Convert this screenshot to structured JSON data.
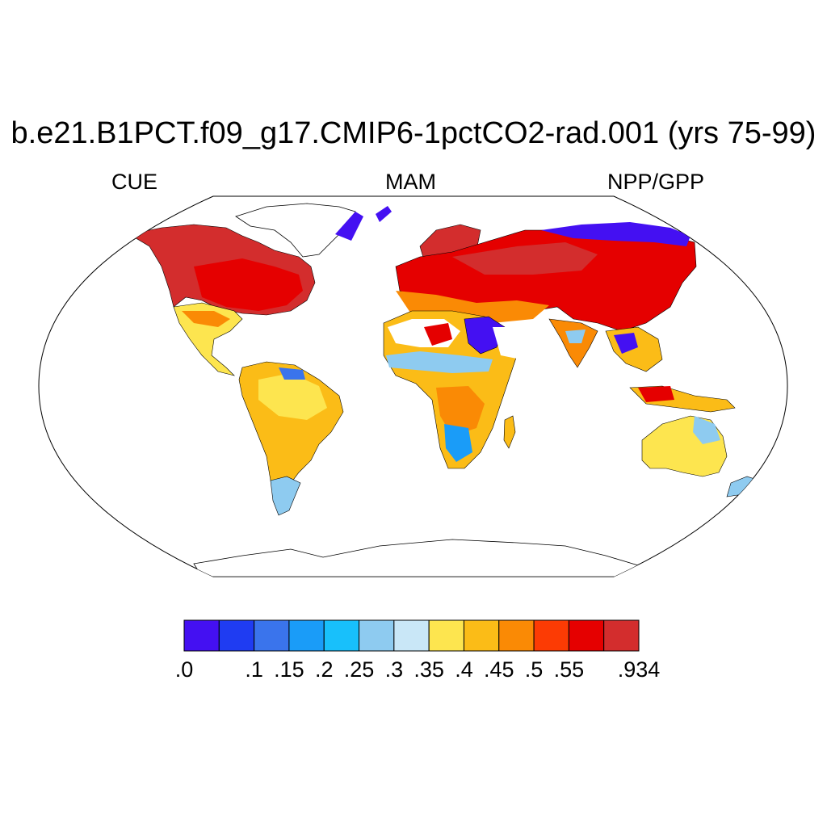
{
  "title": "b.e21.B1PCT.f09_g17.CMIP6-1pctCO2-rad.001 (yrs 75-99)",
  "subtitle_left": "CUE",
  "subtitle_center": "MAM",
  "subtitle_right": "NPP/GPP",
  "projection": "Robinson",
  "colorbar": {
    "colors": [
      "#4410f2",
      "#1f3cf2",
      "#3a74ec",
      "#1a9cf8",
      "#18c0fb",
      "#8ecbf0",
      "#c9e7f7",
      "#fde54f",
      "#fbbc17",
      "#fa8a05",
      "#fc3b04",
      "#e50000",
      "#d32d2d"
    ],
    "labels": [
      ".0",
      ".1",
      ".15",
      ".2",
      ".25",
      ".3",
      ".35",
      ".4",
      ".45",
      ".5",
      ".55",
      ".934"
    ],
    "label_boundaries": [
      0,
      2,
      3,
      4,
      5,
      6,
      7,
      8,
      9,
      10,
      11,
      13
    ]
  },
  "regions": [
    {
      "name": "north-america-north",
      "color": "#d32d2d"
    },
    {
      "name": "north-america-east",
      "color": "#e50000"
    },
    {
      "name": "greenland-coast",
      "color": "#4410f2"
    },
    {
      "name": "central-america",
      "color": "#fde54f"
    },
    {
      "name": "south-america",
      "color": "#fbbc17"
    },
    {
      "name": "patagonia",
      "color": "#8ecbf0"
    },
    {
      "name": "scandinavia",
      "color": "#d32d2d"
    },
    {
      "name": "eurasia",
      "color": "#e50000"
    },
    {
      "name": "siberia-arctic",
      "color": "#4410f2"
    },
    {
      "name": "africa",
      "color": "#fbbc17"
    },
    {
      "name": "sahel",
      "color": "#8ecbf0"
    },
    {
      "name": "arabia",
      "color": "#4410f2"
    },
    {
      "name": "india",
      "color": "#fa8a05"
    },
    {
      "name": "southeast-asia",
      "color": "#fbbc17"
    },
    {
      "name": "australia",
      "color": "#fde54f"
    }
  ]
}
